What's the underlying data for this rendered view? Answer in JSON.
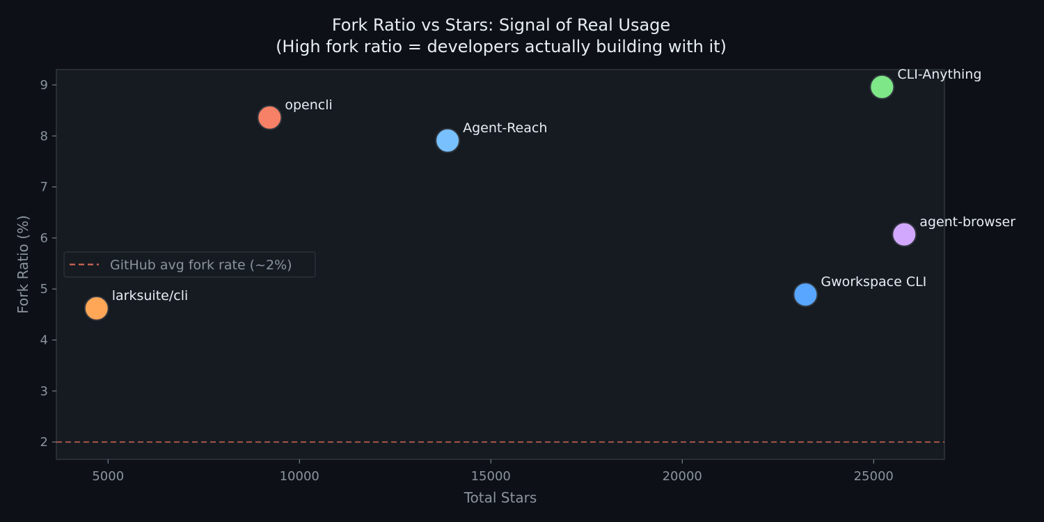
{
  "chart_data": {
    "type": "scatter",
    "title": "Fork Ratio vs Stars: Signal of Real Usage",
    "subtitle": "(High fork ratio = developers actually building with it)",
    "xlabel": "Total Stars",
    "ylabel": "Fork Ratio (%)",
    "xlim": [
      3650,
      26850
    ],
    "ylim": [
      1.66,
      9.3
    ],
    "xticks": [
      5000,
      10000,
      15000,
      20000,
      25000
    ],
    "yticks": [
      2,
      3,
      4,
      5,
      6,
      7,
      8,
      9
    ],
    "grid": false,
    "points": [
      {
        "label": "larksuite/cli",
        "x": 4700,
        "y": 4.62,
        "color": "#ffa657"
      },
      {
        "label": "opencli",
        "x": 9220,
        "y": 8.36,
        "color": "#f78166"
      },
      {
        "label": "Agent-Reach",
        "x": 13870,
        "y": 7.91,
        "color": "#79c0ff"
      },
      {
        "label": "Gworkspace CLI",
        "x": 23220,
        "y": 4.89,
        "color": "#58a6ff"
      },
      {
        "label": "CLI-Anything",
        "x": 25220,
        "y": 8.96,
        "color": "#7ee787"
      },
      {
        "label": "agent-browser",
        "x": 25800,
        "y": 6.07,
        "color": "#d2a8ff"
      }
    ],
    "reference_line": {
      "y": 2,
      "label": "GitHub avg fork rate (~2%)",
      "color": "#c0604f",
      "style": "dashed"
    },
    "legend_placement": "center-left",
    "colors": {
      "background": "#0d1117",
      "plot_background": "#161b22",
      "text": "#e6edf3",
      "muted": "#8b949e"
    }
  }
}
